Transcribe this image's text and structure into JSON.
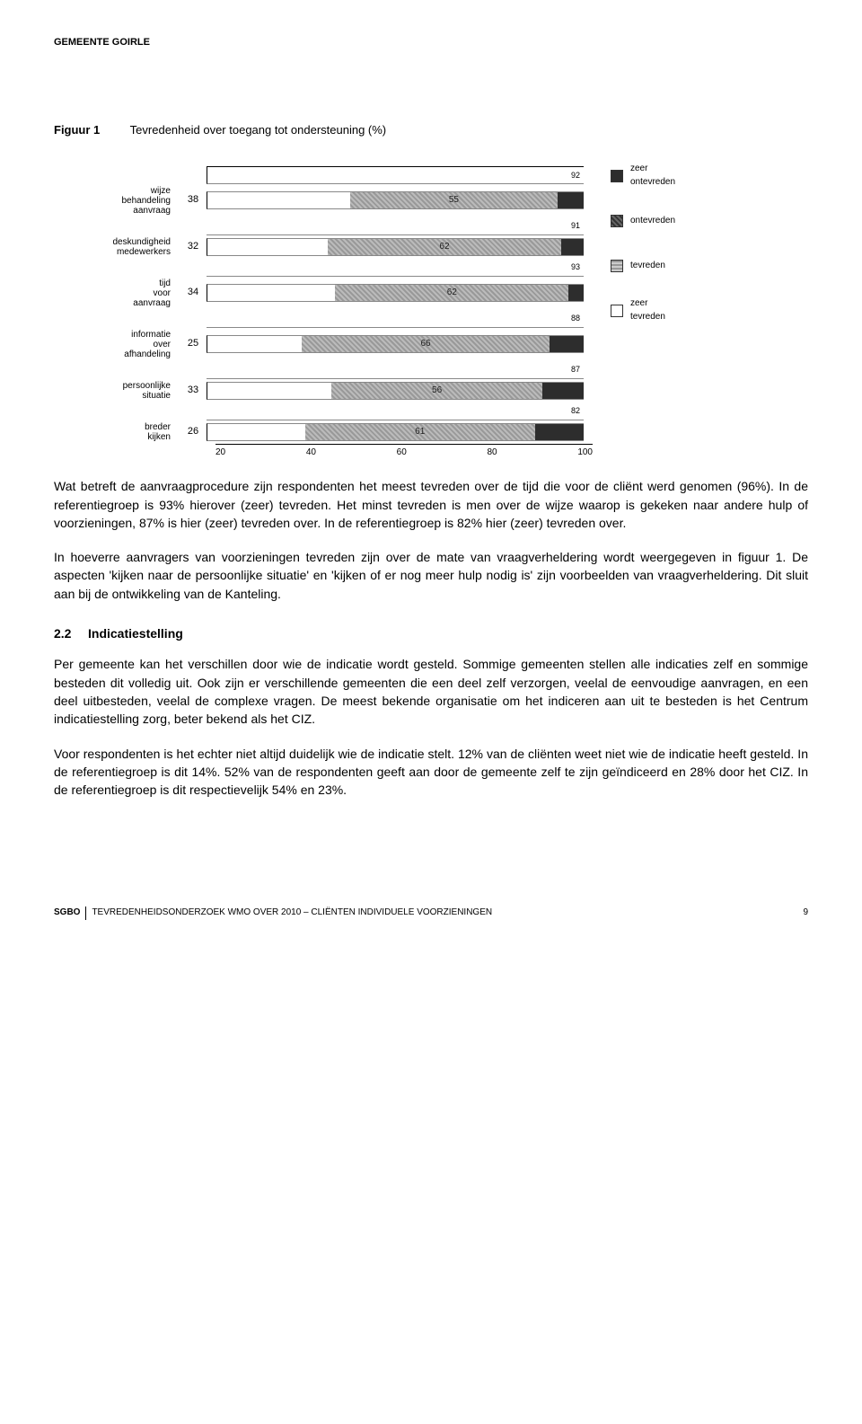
{
  "header": "GEMEENTE GOIRLE",
  "figure": {
    "label": "Figuur 1",
    "title": "Tevredenheid over toegang tot ondersteuning (%)",
    "rows": [
      {
        "label": "wijze behandeling aanvraag",
        "v1": 38,
        "v2": 55,
        "v3": 7,
        "total": 92
      },
      {
        "label": "deskundigheid medewerkers",
        "v1": 32,
        "v2": 62,
        "v3": 6,
        "total": 91
      },
      {
        "label": "tijd voor aanvraag",
        "v1": 34,
        "v2": 62,
        "v3": 4,
        "total": 93
      },
      {
        "label": "informatie over afhandeling",
        "v1": 25,
        "v2": 66,
        "v3": 9,
        "total": 88
      },
      {
        "label": "persoonlijke situatie",
        "v1": 33,
        "v2": 56,
        "v3": 11,
        "total": 87
      },
      {
        "label": "breder kijken",
        "v1": 26,
        "v2": 61,
        "v3": 13,
        "total": 82
      }
    ],
    "axis": [
      "20",
      "40",
      "60",
      "80",
      "100"
    ],
    "legend": [
      {
        "cls": "zo",
        "label": "zeer ontevreden"
      },
      {
        "cls": "on",
        "label": "ontevreden"
      },
      {
        "cls": "te",
        "label": "tevreden"
      },
      {
        "cls": "zt",
        "label": "zeer tevreden"
      }
    ],
    "colors": {
      "seg2": "#b0b0b0",
      "seg3": "#2d2d2d",
      "border": "#888888"
    }
  },
  "paragraphs": {
    "p1": "Wat betreft de aanvraagprocedure zijn respondenten het meest tevreden over de tijd die voor de cliënt werd genomen (96%). In de referentiegroep is 93% hierover (zeer) tevreden. Het minst tevreden is men over de wijze waarop is gekeken naar andere hulp of voorzieningen, 87% is hier (zeer) tevreden over. In de referentiegroep is 82% hier (zeer) tevreden over.",
    "p2": "In hoeverre aanvragers van voorzieningen tevreden zijn over de mate van vraagverheldering wordt weergegeven in figuur 1. De aspecten 'kijken naar de persoonlijke situatie' en 'kijken of er nog meer hulp nodig is' zijn voorbeelden van vraagverheldering. Dit sluit aan bij de ontwikkeling van de Kanteling.",
    "p3": "Per gemeente kan het verschillen door wie de indicatie wordt gesteld. Sommige gemeenten stellen alle indicaties zelf en sommige besteden dit volledig uit. Ook zijn er verschillende gemeenten die een deel zelf verzorgen, veelal de eenvoudige aanvragen, en een deel uitbesteden, veelal de complexe vragen. De meest bekende organisatie om het indiceren aan uit te besteden is het Centrum indicatiestelling zorg, beter bekend als het CIZ.",
    "p4": "Voor respondenten is het echter niet altijd duidelijk wie de indicatie stelt. 12% van de cliënten weet niet wie de indicatie heeft gesteld. In de referentiegroep is dit 14%. 52% van de respondenten geeft aan door de gemeente zelf te zijn geïndiceerd en 28% door het CIZ. In de referentiegroep is dit respectievelijk 54% en 23%."
  },
  "section": {
    "num": "2.2",
    "title": "Indicatiestelling"
  },
  "footer": {
    "org": "SGBO",
    "text": "TEVREDENHEIDSONDERZOEK WMO OVER 2010 – CLIËNTEN INDIVIDUELE VOORZIENINGEN",
    "page": "9"
  }
}
